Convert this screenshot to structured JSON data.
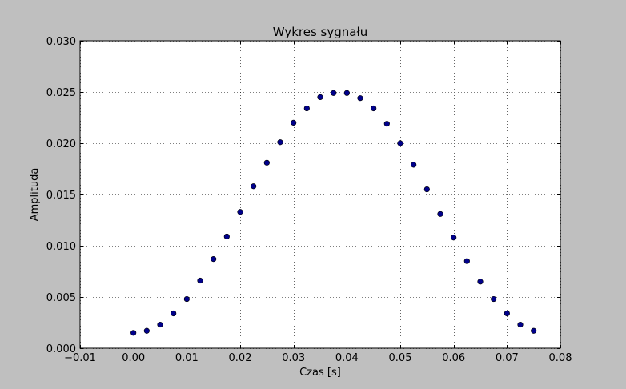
{
  "chart_data": {
    "type": "scatter",
    "title": "Wykres sygnału",
    "xlabel": "Czas [s]",
    "ylabel": "Amplituda",
    "xlim": [
      -0.01,
      0.08
    ],
    "ylim": [
      0.0,
      0.03
    ],
    "xticks": [
      "−0.01",
      "0.00",
      "0.01",
      "0.02",
      "0.03",
      "0.04",
      "0.05",
      "0.06",
      "0.07",
      "0.08"
    ],
    "xtick_values": [
      -0.01,
      0.0,
      0.01,
      0.02,
      0.03,
      0.04,
      0.05,
      0.06,
      0.07,
      0.08
    ],
    "yticks": [
      "0.000",
      "0.005",
      "0.010",
      "0.015",
      "0.020",
      "0.025",
      "0.030"
    ],
    "ytick_values": [
      0.0,
      0.005,
      0.01,
      0.015,
      0.02,
      0.025,
      0.03
    ],
    "grid": true,
    "marker_color": "#00008b",
    "points": [
      {
        "x": 0.0,
        "y": 0.0015
      },
      {
        "x": 0.0025,
        "y": 0.0017
      },
      {
        "x": 0.005,
        "y": 0.0023
      },
      {
        "x": 0.0075,
        "y": 0.0034
      },
      {
        "x": 0.01,
        "y": 0.0048
      },
      {
        "x": 0.0125,
        "y": 0.0066
      },
      {
        "x": 0.015,
        "y": 0.0087
      },
      {
        "x": 0.0175,
        "y": 0.0109
      },
      {
        "x": 0.02,
        "y": 0.0133
      },
      {
        "x": 0.0225,
        "y": 0.0158
      },
      {
        "x": 0.025,
        "y": 0.0181
      },
      {
        "x": 0.0275,
        "y": 0.0201
      },
      {
        "x": 0.03,
        "y": 0.022
      },
      {
        "x": 0.0325,
        "y": 0.0234
      },
      {
        "x": 0.035,
        "y": 0.0245
      },
      {
        "x": 0.0375,
        "y": 0.0249
      },
      {
        "x": 0.04,
        "y": 0.0249
      },
      {
        "x": 0.0425,
        "y": 0.0244
      },
      {
        "x": 0.045,
        "y": 0.0234
      },
      {
        "x": 0.0475,
        "y": 0.0219
      },
      {
        "x": 0.05,
        "y": 0.02
      },
      {
        "x": 0.0525,
        "y": 0.0179
      },
      {
        "x": 0.055,
        "y": 0.0155
      },
      {
        "x": 0.0575,
        "y": 0.0131
      },
      {
        "x": 0.06,
        "y": 0.0108
      },
      {
        "x": 0.0625,
        "y": 0.0085
      },
      {
        "x": 0.065,
        "y": 0.0065
      },
      {
        "x": 0.0675,
        "y": 0.0048
      },
      {
        "x": 0.07,
        "y": 0.0034
      },
      {
        "x": 0.0725,
        "y": 0.0023
      },
      {
        "x": 0.075,
        "y": 0.0017
      }
    ]
  }
}
